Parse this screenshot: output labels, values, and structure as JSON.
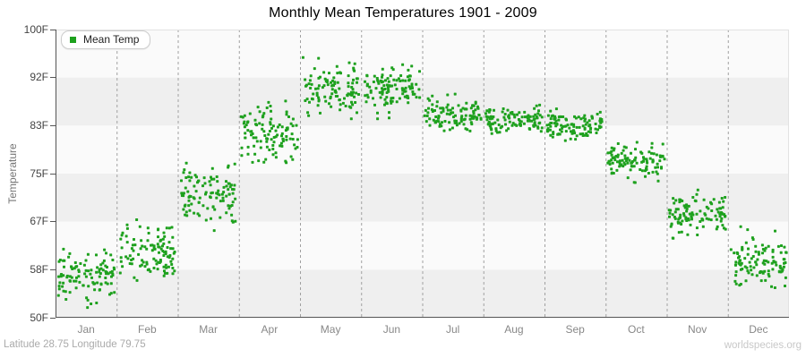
{
  "chart_data": {
    "type": "scatter",
    "title": "Monthly Mean Temperatures 1901 - 2009",
    "ylabel": "Temperature",
    "xlabel": "",
    "ylim": [
      50,
      100
    ],
    "y_tick_labels": [
      "100F",
      "92F",
      "83F",
      "75F",
      "67F",
      "58F",
      "50F"
    ],
    "categories": [
      "Jan",
      "Feb",
      "Mar",
      "Apr",
      "May",
      "Jun",
      "Jul",
      "Aug",
      "Sep",
      "Oct",
      "Nov",
      "Dec"
    ],
    "legend": [
      {
        "label": "Mean Temp",
        "color": "#1ea11e"
      }
    ],
    "legend_position": "top-left",
    "grid": "vertical-dashed-month-separators",
    "band_fill": "alternating-horizontal",
    "year_range": [
      1901,
      2009
    ],
    "points_per_month": 109,
    "series": [
      {
        "month": "Jan",
        "mean": 57.5,
        "sd": 2.3,
        "min": 51.5,
        "max": 63.5
      },
      {
        "month": "Feb",
        "mean": 61.8,
        "sd": 2.5,
        "min": 56.0,
        "max": 68.5
      },
      {
        "month": "Mar",
        "mean": 71.5,
        "sd": 2.7,
        "min": 64.0,
        "max": 78.5
      },
      {
        "month": "Apr",
        "mean": 81.8,
        "sd": 2.4,
        "min": 75.5,
        "max": 88.5
      },
      {
        "month": "May",
        "mean": 89.4,
        "sd": 2.1,
        "min": 83.5,
        "max": 95.5
      },
      {
        "month": "Jun",
        "mean": 90.0,
        "sd": 2.2,
        "min": 84.5,
        "max": 96.5
      },
      {
        "month": "Jul",
        "mean": 85.3,
        "sd": 1.3,
        "min": 82.0,
        "max": 89.0
      },
      {
        "month": "Aug",
        "mean": 84.3,
        "sd": 1.1,
        "min": 81.5,
        "max": 87.0
      },
      {
        "month": "Sep",
        "mean": 83.2,
        "sd": 1.2,
        "min": 80.0,
        "max": 86.5
      },
      {
        "month": "Oct",
        "mean": 77.2,
        "sd": 1.5,
        "min": 72.5,
        "max": 81.5
      },
      {
        "month": "Nov",
        "mean": 68.3,
        "sd": 1.8,
        "min": 63.5,
        "max": 72.5
      },
      {
        "month": "Dec",
        "mean": 59.8,
        "sd": 2.2,
        "min": 54.5,
        "max": 66.5
      }
    ]
  },
  "footer": {
    "left": "Latitude 28.75 Longitude 79.75",
    "right": "worldspecies.org"
  },
  "colors": {
    "marker": "#1ea11e",
    "band_light": "#fafafa",
    "band_dark": "#efefef",
    "gridline": "#a0a0a0",
    "axis_dark": "#555555",
    "axis_light": "#e2e2e2",
    "tick_label": "#444444",
    "month_label": "#888888",
    "title": "#000000",
    "ylabel": "#777777",
    "footer_left": "#aaaaaa",
    "footer_right": "#c8c8c8",
    "legend_border": "#cccccc",
    "legend_bg": "#ffffff",
    "legend_text": "#222222"
  }
}
